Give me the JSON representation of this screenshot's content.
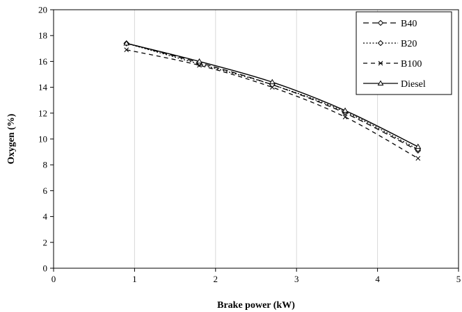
{
  "chart_data": {
    "type": "line",
    "title": "",
    "xlabel": "Brake power (kW)",
    "ylabel": "Oxygen (%)",
    "xlim": [
      0,
      5
    ],
    "ylim": [
      0,
      20
    ],
    "xticks": [
      "0",
      "1",
      "2",
      "3",
      "4",
      "5"
    ],
    "yticks": [
      "0",
      "2",
      "4",
      "6",
      "8",
      "10",
      "12",
      "14",
      "16",
      "18",
      "20"
    ],
    "grid": "vertical",
    "legend_position": "top-right",
    "x": [
      0.9,
      1.8,
      2.7,
      3.6,
      4.5
    ],
    "series": [
      {
        "name": "B40",
        "values": [
          17.4,
          15.9,
          14.2,
          12.0,
          9.1
        ],
        "dash": "8,5",
        "marker": "diamond",
        "marker_fill": "#ffffff"
      },
      {
        "name": "B20",
        "values": [
          17.4,
          15.8,
          14.2,
          12.1,
          9.2
        ],
        "dash": "2,2.5",
        "marker": "diamond",
        "marker_fill": "#ffffff"
      },
      {
        "name": "B100",
        "values": [
          16.9,
          15.7,
          14.0,
          11.7,
          8.5
        ],
        "dash": "6,5",
        "marker": "x",
        "marker_fill": "#000000"
      },
      {
        "name": "Diesel",
        "values": [
          17.4,
          16.0,
          14.4,
          12.2,
          9.4
        ],
        "dash": "",
        "marker": "triangle",
        "marker_fill": "#ffffff"
      }
    ]
  }
}
